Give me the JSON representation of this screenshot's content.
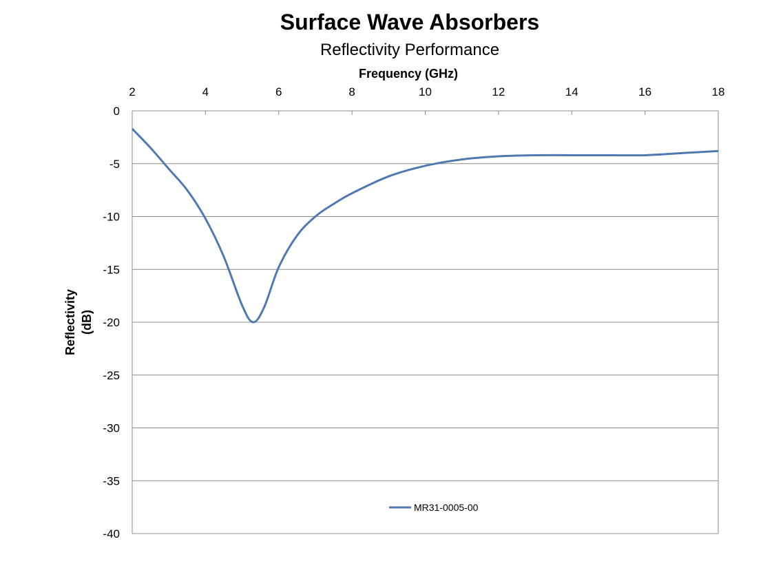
{
  "chart_data": {
    "type": "line",
    "title": "Surface Wave Absorbers",
    "subtitle": "Reflectivity Performance",
    "xlabel": "Frequency (GHz)",
    "ylabel_line1": "Reflectivity",
    "ylabel_line2": "(dB)",
    "xlim": [
      2,
      18
    ],
    "ylim": [
      -40,
      0
    ],
    "x_ticks": [
      "2",
      "4",
      "6",
      "8",
      "10",
      "12",
      "14",
      "16",
      "18"
    ],
    "y_ticks": [
      "0",
      "-5",
      "-10",
      "-15",
      "-20",
      "-25",
      "-30",
      "-35",
      "-40"
    ],
    "x_axis_position": "top",
    "grid": "horizontal",
    "legend_position": "bottom-center",
    "series_color": "#4f79b0",
    "series": [
      {
        "name": "MR31-0005-00",
        "x": [
          2,
          2.5,
          3,
          3.5,
          4,
          4.5,
          5,
          5.3,
          5.6,
          6,
          6.5,
          7,
          7.5,
          8,
          9,
          10,
          11,
          12,
          13,
          14,
          15,
          16,
          17,
          18
        ],
        "y": [
          -1.7,
          -3.5,
          -5.5,
          -7.5,
          -10.2,
          -13.8,
          -18.4,
          -20.0,
          -18.6,
          -14.8,
          -11.8,
          -10.0,
          -8.8,
          -7.8,
          -6.2,
          -5.2,
          -4.6,
          -4.3,
          -4.2,
          -4.2,
          -4.2,
          -4.2,
          -4.0,
          -3.8
        ]
      }
    ]
  }
}
